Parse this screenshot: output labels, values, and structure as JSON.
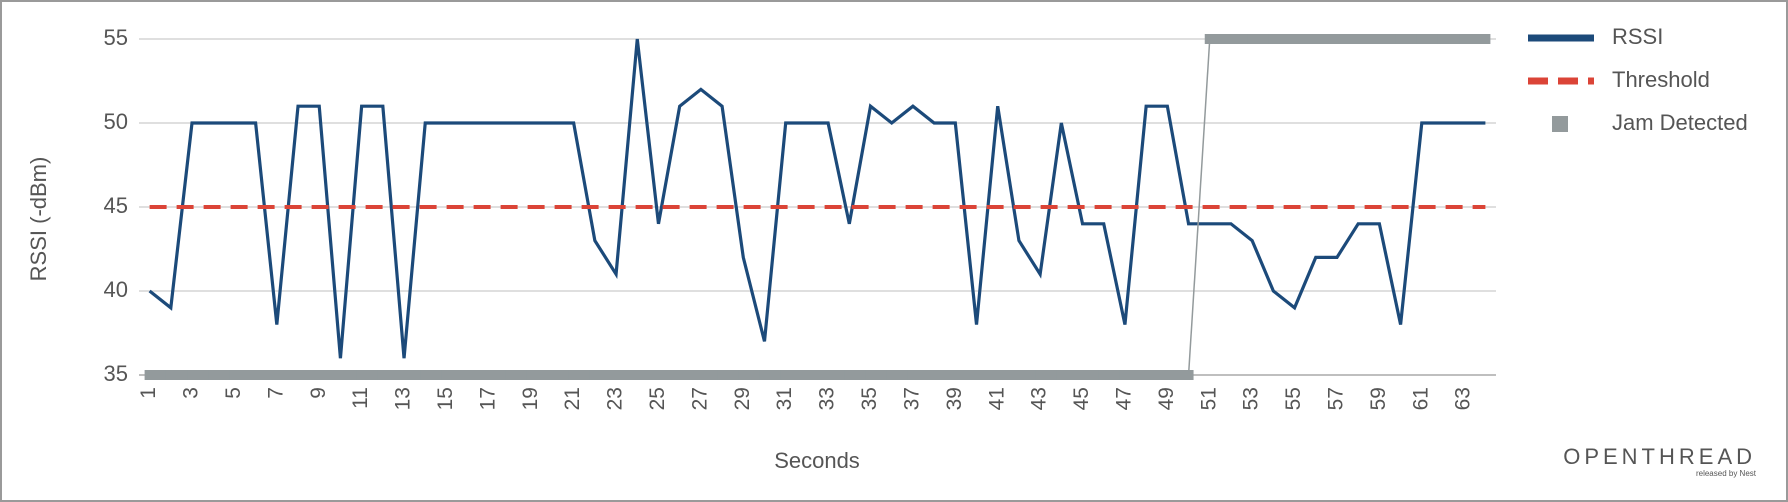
{
  "chart_data": {
    "type": "line",
    "y_label": "RSSI (-dBm)",
    "x_label": "Seconds",
    "categories": [
      1,
      null,
      3,
      null,
      5,
      null,
      7,
      null,
      9,
      null,
      11,
      null,
      13,
      null,
      15,
      null,
      17,
      null,
      19,
      null,
      21,
      null,
      23,
      null,
      25,
      null,
      27,
      null,
      29,
      null,
      31,
      null,
      33,
      null,
      35,
      null,
      37,
      null,
      39,
      null,
      41,
      null,
      43,
      null,
      45,
      null,
      47,
      null,
      49,
      null,
      51,
      null,
      53,
      null,
      55,
      null,
      57,
      null,
      59,
      null,
      61,
      null,
      63,
      null
    ],
    "series": [
      {
        "name": "RSSI",
        "color": "#1c4a7a",
        "style": "solid",
        "values": [
          40,
          39,
          50,
          50,
          50,
          50,
          38,
          51,
          51,
          36,
          51,
          51,
          36,
          50,
          50,
          50,
          50,
          50,
          50,
          50,
          50,
          43,
          41,
          55,
          44,
          51,
          52,
          51,
          42,
          37,
          50,
          50,
          50,
          44,
          51,
          50,
          51,
          50,
          50,
          38,
          51,
          43,
          41,
          50,
          44,
          44,
          38,
          51,
          51,
          44,
          44,
          44,
          43,
          40,
          39,
          42,
          42,
          44,
          44,
          38,
          50,
          50,
          50,
          50
        ]
      },
      {
        "name": "Threshold",
        "color": "#db4437",
        "style": "dashed",
        "values": [
          45,
          45,
          45,
          45,
          45,
          45,
          45,
          45,
          45,
          45,
          45,
          45,
          45,
          45,
          45,
          45,
          45,
          45,
          45,
          45,
          45,
          45,
          45,
          45,
          45,
          45,
          45,
          45,
          45,
          45,
          45,
          45,
          45,
          45,
          45,
          45,
          45,
          45,
          45,
          45,
          45,
          45,
          45,
          45,
          45,
          45,
          45,
          45,
          45,
          45,
          45,
          45,
          45,
          45,
          45,
          45,
          45,
          45,
          45,
          45,
          45,
          45,
          45,
          45
        ]
      },
      {
        "name": "Jam Detected",
        "color": "#939a9c",
        "style": "step",
        "axis": "y2",
        "values": [
          0,
          0,
          0,
          0,
          0,
          0,
          0,
          0,
          0,
          0,
          0,
          0,
          0,
          0,
          0,
          0,
          0,
          0,
          0,
          0,
          0,
          0,
          0,
          0,
          0,
          0,
          0,
          0,
          0,
          0,
          0,
          0,
          0,
          0,
          0,
          0,
          0,
          0,
          0,
          0,
          0,
          0,
          0,
          0,
          0,
          0,
          0,
          0,
          0,
          0,
          1,
          1,
          1,
          1,
          1,
          1,
          1,
          1,
          1,
          1,
          1,
          1,
          1,
          1
        ]
      }
    ],
    "ylim": [
      35,
      55
    ],
    "yticks": [
      35,
      40,
      45,
      50,
      55
    ],
    "y2lim": [
      0,
      1
    ],
    "grid": true,
    "legend": "right"
  },
  "logo": {
    "name": "OPENTHREAD",
    "tagline": "released by Nest"
  }
}
